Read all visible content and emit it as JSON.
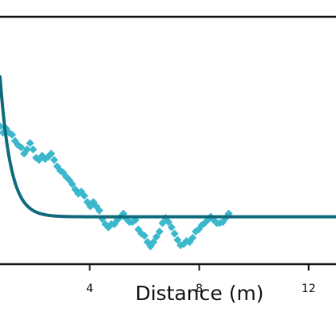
{
  "chart_data": {
    "type": "scatter",
    "xlabel": "Distance (m)",
    "ylabel": "",
    "title": "",
    "xlim": [
      0.72,
      13.0
    ],
    "ylim": [
      -0.45,
      1.9
    ],
    "xticks": [
      4,
      8,
      12
    ],
    "xtick_labels": [
      "4",
      "8",
      "12"
    ],
    "grid": false,
    "legend": "none",
    "colors": {
      "points": "#3bb8cc",
      "fit_line": "#0f6b7c",
      "axes": "#111111"
    },
    "series": [
      {
        "kind": "scatter",
        "marker": "diamond",
        "points": [
          [
            0.72,
            0.86
          ],
          [
            0.83,
            0.8
          ],
          [
            0.94,
            0.84
          ],
          [
            1.05,
            0.8
          ],
          [
            1.16,
            0.78
          ],
          [
            1.27,
            0.72
          ],
          [
            1.38,
            0.68
          ],
          [
            1.49,
            0.66
          ],
          [
            1.6,
            0.6
          ],
          [
            1.71,
            0.64
          ],
          [
            1.82,
            0.7
          ],
          [
            1.93,
            0.64
          ],
          [
            2.04,
            0.56
          ],
          [
            2.15,
            0.54
          ],
          [
            2.26,
            0.58
          ],
          [
            2.37,
            0.55
          ],
          [
            2.48,
            0.57
          ],
          [
            2.59,
            0.6
          ],
          [
            2.7,
            0.54
          ],
          [
            2.81,
            0.48
          ],
          [
            2.92,
            0.44
          ],
          [
            3.03,
            0.42
          ],
          [
            3.14,
            0.38
          ],
          [
            3.25,
            0.35
          ],
          [
            3.36,
            0.31
          ],
          [
            3.47,
            0.26
          ],
          [
            3.58,
            0.22
          ],
          [
            3.69,
            0.24
          ],
          [
            3.8,
            0.2
          ],
          [
            3.91,
            0.14
          ],
          [
            4.02,
            0.1
          ],
          [
            4.13,
            0.14
          ],
          [
            4.24,
            0.1
          ],
          [
            4.35,
            0.06
          ],
          [
            4.46,
            -0.02
          ],
          [
            4.57,
            -0.07
          ],
          [
            4.68,
            -0.1
          ],
          [
            4.79,
            -0.07
          ],
          [
            4.9,
            -0.07
          ],
          [
            5.01,
            -0.03
          ],
          [
            5.12,
            0.0
          ],
          [
            5.23,
            0.03
          ],
          [
            5.34,
            -0.02
          ],
          [
            5.45,
            -0.05
          ],
          [
            5.56,
            -0.05
          ],
          [
            5.67,
            -0.03
          ],
          [
            5.78,
            -0.12
          ],
          [
            5.89,
            -0.16
          ],
          [
            6.0,
            -0.18
          ],
          [
            6.11,
            -0.24
          ],
          [
            6.22,
            -0.28
          ],
          [
            6.33,
            -0.24
          ],
          [
            6.44,
            -0.19
          ],
          [
            6.55,
            -0.14
          ],
          [
            6.66,
            -0.06
          ],
          [
            6.77,
            -0.01
          ],
          [
            6.88,
            -0.05
          ],
          [
            6.99,
            -0.1
          ],
          [
            7.1,
            -0.16
          ],
          [
            7.21,
            -0.22
          ],
          [
            7.32,
            -0.27
          ],
          [
            7.43,
            -0.26
          ],
          [
            7.54,
            -0.23
          ],
          [
            7.65,
            -0.24
          ],
          [
            7.76,
            -0.2
          ],
          [
            7.87,
            -0.14
          ],
          [
            7.98,
            -0.12
          ],
          [
            8.09,
            -0.08
          ],
          [
            8.2,
            -0.06
          ],
          [
            8.31,
            -0.03
          ],
          [
            8.42,
            0.0
          ],
          [
            8.53,
            -0.03
          ],
          [
            8.64,
            -0.06
          ],
          [
            8.75,
            -0.06
          ],
          [
            8.86,
            -0.05
          ],
          [
            8.97,
            -0.01
          ],
          [
            9.08,
            0.03
          ]
        ]
      },
      {
        "kind": "line",
        "equation": "y = 1.33 * exp(-(x - 0.72) / 0.39)",
        "x_range": [
          0.72,
          13.0
        ]
      }
    ]
  }
}
